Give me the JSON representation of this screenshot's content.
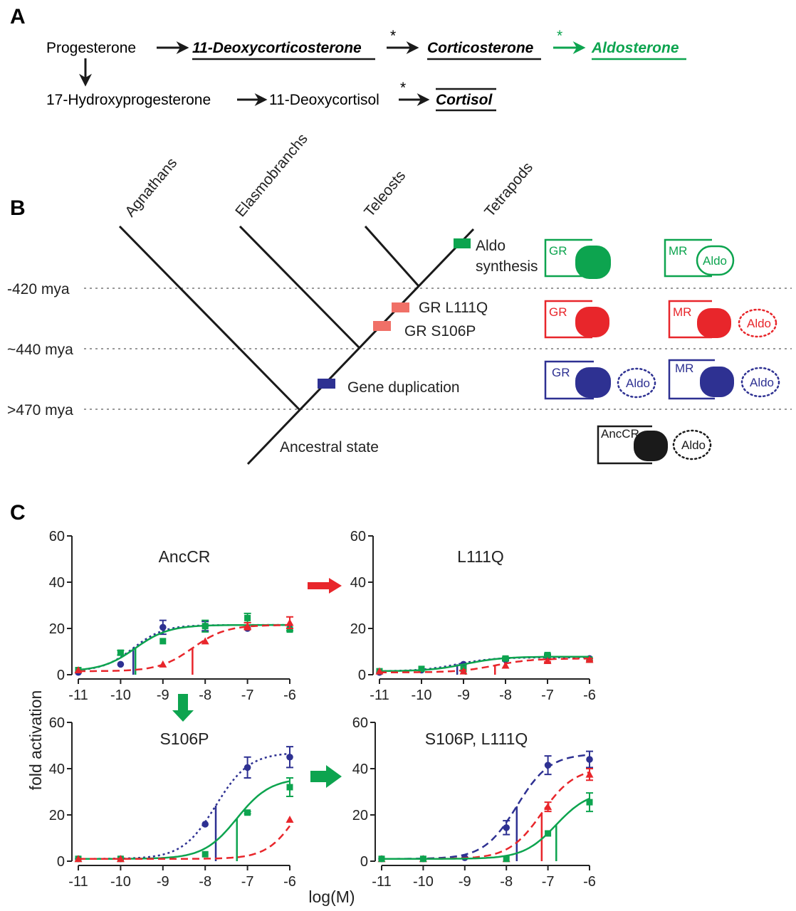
{
  "colors": {
    "black": "#1a1a1a",
    "green": "#0da44f",
    "red": "#e8262b",
    "salmon": "#f07067",
    "blue": "#2e3192"
  },
  "panel_a": {
    "letter": "A",
    "progesterone": "Progesterone",
    "deoxycorticosterone": "11-Deoxycorticosterone",
    "corticosterone": "Corticosterone",
    "aldosterone": "Aldosterone",
    "hydroxyprogesterone": "17-Hydroxyprogesterone",
    "deoxycortisol": "11-Deoxycortisol",
    "cortisol": "Cortisol",
    "star": "*"
  },
  "panel_b": {
    "letter": "B",
    "clades": [
      "Agnathans",
      "Elasmobranchs",
      "Teleosts",
      "Tetrapods"
    ],
    "times": [
      "-420 mya",
      "~440 mya",
      ">470 mya"
    ],
    "events": {
      "aldo_synthesis_1": "Aldo",
      "aldo_synthesis_2": "synthesis",
      "l111q": "GR L111Q",
      "s106p": "GR S106P",
      "gene_duplication": "Gene duplication",
      "ancestral": "Ancestral state"
    },
    "receptors": {
      "gr": "GR",
      "mr": "MR",
      "anccr": "AncCR",
      "aldo": "Aldo"
    }
  },
  "panel_c": {
    "letter": "C",
    "ylabel": "fold activation",
    "xlabel": "log(M)"
  },
  "chart_data": [
    {
      "type": "line",
      "title": "AncCR",
      "xlim": [
        -11,
        -6
      ],
      "ylim": [
        0,
        60
      ],
      "xticks": [
        -11,
        -10,
        -9,
        -8,
        -7,
        -6
      ],
      "yticks": [
        0,
        20,
        40,
        60
      ],
      "series": [
        {
          "color": "blue",
          "style": "dotted",
          "marker": "circle",
          "x": [
            -11,
            -10,
            -9,
            -8,
            -7,
            -6
          ],
          "y": [
            1,
            4.5,
            20.5,
            21,
            20,
            20
          ],
          "err": [
            0,
            0,
            3,
            2,
            0,
            0
          ],
          "ec50": -9.7,
          "fit": [
            1.5,
            21.5,
            -9.7,
            1.2
          ]
        },
        {
          "color": "green",
          "style": "solid",
          "marker": "square",
          "x": [
            -11,
            -10,
            -9,
            -8,
            -7,
            -6
          ],
          "y": [
            2,
            9.5,
            14.5,
            21,
            24.5,
            19.5
          ],
          "err": [
            0,
            1,
            0,
            2.5,
            2,
            0.5
          ],
          "ec50": -9.65,
          "fit": [
            1.5,
            21.5,
            -9.65,
            1.1
          ]
        },
        {
          "color": "red",
          "style": "dashed",
          "marker": "triangle",
          "x": [
            -11,
            -9,
            -8,
            -7,
            -6
          ],
          "y": [
            2,
            4.5,
            14.5,
            21,
            22.5
          ],
          "err": [
            0,
            0,
            0,
            1.5,
            2.5
          ],
          "ec50": -8.3,
          "fit": [
            1.5,
            21.5,
            -8.3,
            1.1
          ]
        }
      ]
    },
    {
      "type": "line",
      "title": "L111Q",
      "xlim": [
        -11,
        -6
      ],
      "ylim": [
        0,
        60
      ],
      "xticks": [
        -11,
        -10,
        -9,
        -8,
        -7,
        -6
      ],
      "yticks": [
        0,
        20,
        40,
        60
      ],
      "series": [
        {
          "color": "blue",
          "style": "dotted",
          "marker": "circle",
          "x": [
            -11,
            -10,
            -9,
            -8,
            -7,
            -6
          ],
          "y": [
            1,
            2,
            4.5,
            6.5,
            8,
            7
          ],
          "err": [
            0,
            0,
            0,
            0.5,
            0.5,
            0
          ],
          "ec50": -9.15,
          "fit": [
            1.5,
            7.5,
            -9.15,
            1
          ]
        },
        {
          "color": "green",
          "style": "solid",
          "marker": "square",
          "x": [
            -11,
            -10,
            -9,
            -8,
            -7,
            -6
          ],
          "y": [
            1.5,
            2.5,
            2.5,
            7,
            8.5,
            6.5
          ],
          "err": [
            0,
            0,
            0,
            0.5,
            0.5,
            0
          ],
          "ec50": -8.95,
          "fit": [
            1.5,
            7.8,
            -8.95,
            1
          ]
        },
        {
          "color": "red",
          "style": "dashed",
          "marker": "triangle",
          "x": [
            -11,
            -9,
            -8,
            -7,
            -6
          ],
          "y": [
            1.5,
            1.5,
            4,
            6,
            6.5
          ],
          "err": [
            0,
            0,
            0,
            0.5,
            0.5
          ],
          "ec50": -8.25,
          "fit": [
            1,
            7,
            -8.25,
            1
          ]
        }
      ]
    },
    {
      "type": "line",
      "title": "S106P",
      "xlim": [
        -11,
        -6
      ],
      "ylim": [
        0,
        60
      ],
      "xticks": [
        -11,
        -10,
        -9,
        -8,
        -7,
        -6
      ],
      "yticks": [
        0,
        20,
        40,
        60
      ],
      "series": [
        {
          "color": "blue",
          "style": "dotted",
          "marker": "circle",
          "x": [
            -11,
            -10,
            -8,
            -7,
            -6
          ],
          "y": [
            1,
            1,
            16,
            40.5,
            45
          ],
          "err": [
            0,
            0,
            0,
            4.5,
            4.5
          ],
          "ec50": -7.75,
          "fit": [
            1,
            47,
            -7.75,
            1.1
          ]
        },
        {
          "color": "green",
          "style": "solid",
          "marker": "square",
          "x": [
            -11,
            -10,
            -8,
            -7,
            -6
          ],
          "y": [
            1,
            1,
            3,
            21,
            32
          ],
          "err": [
            0,
            0,
            0,
            0.5,
            4
          ],
          "ec50": -7.25,
          "fit": [
            1,
            36,
            -7.25,
            1.1
          ]
        },
        {
          "color": "red",
          "style": "dashed",
          "marker": "triangle",
          "x": [
            -11,
            -10,
            -6
          ],
          "y": [
            1,
            1,
            18
          ],
          "err": [
            0,
            0,
            0
          ],
          "fit": [
            1,
            40,
            -5.8,
            1.2
          ]
        }
      ]
    },
    {
      "type": "line",
      "title": "S106P, L111Q",
      "xlim": [
        -11,
        -6
      ],
      "ylim": [
        0,
        60
      ],
      "xticks": [
        -11,
        -10,
        -9,
        -8,
        -7,
        -6
      ],
      "yticks": [
        0,
        20,
        40,
        60
      ],
      "series": [
        {
          "color": "blue",
          "style": "dashed",
          "marker": "circle",
          "x": [
            -11,
            -10,
            -9,
            -8,
            -7,
            -6
          ],
          "y": [
            1,
            1,
            1.5,
            14.5,
            41.5,
            44
          ],
          "err": [
            0,
            0,
            0,
            3,
            4,
            3.5
          ],
          "ec50": -7.75,
          "fit": [
            1,
            46.5,
            -7.75,
            1.1
          ]
        },
        {
          "color": "red",
          "style": "dashed",
          "marker": "triangle",
          "x": [
            -11,
            -10,
            -8,
            -7,
            -6
          ],
          "y": [
            1,
            1,
            1,
            23.5,
            37.5
          ],
          "err": [
            0,
            0,
            0,
            2,
            2.5
          ],
          "ec50": -7.15,
          "fit": [
            1,
            40.5,
            -7.15,
            1.1
          ]
        },
        {
          "color": "green",
          "style": "solid",
          "marker": "square",
          "x": [
            -11,
            -10,
            -8,
            -7,
            -6
          ],
          "y": [
            1,
            1,
            1,
            12,
            25.5
          ],
          "err": [
            0,
            0,
            0,
            0,
            4
          ],
          "ec50": -6.8,
          "fit": [
            1,
            30.5,
            -6.8,
            1.1
          ]
        }
      ]
    }
  ]
}
